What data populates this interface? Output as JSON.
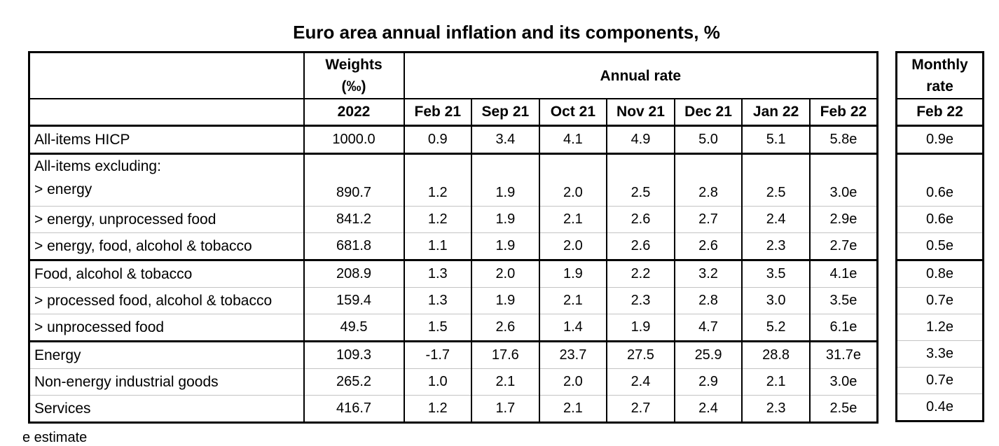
{
  "title": "Euro area annual inflation and its components, %",
  "footnote": "e estimate",
  "colors": {
    "border_strong": "#000000",
    "row_divider": "#c3c3c3",
    "background": "#ffffff"
  },
  "table": {
    "weights_header_line1": "Weights",
    "weights_header_line2": "(‰)",
    "weights_year": "2022",
    "annual_rate_header": "Annual rate",
    "months": [
      "Feb 21",
      "Sep 21",
      "Oct 21",
      "Nov 21",
      "Dec 21",
      "Jan 22",
      "Feb 22"
    ],
    "monthly_header_line1": "Monthly",
    "monthly_header_line2": "rate",
    "monthly_month": "Feb 22",
    "rows": [
      {
        "label": "All-items HICP",
        "bold_label": true,
        "weight": "1000.0",
        "values": [
          "0.9",
          "3.4",
          "4.1",
          "4.9",
          "5.0",
          "5.1",
          "5.8e"
        ],
        "monthly": "0.9e",
        "section_end_main": true,
        "section_end_monthly": true
      },
      {
        "label_lines": [
          "All-items excluding:",
          "> energy"
        ],
        "tall": true,
        "weight": "890.7",
        "values": [
          "1.2",
          "1.9",
          "2.0",
          "2.5",
          "2.8",
          "2.5",
          "3.0e"
        ],
        "monthly": "0.6e"
      },
      {
        "label": "> energy, unprocessed food",
        "weight": "841.2",
        "values": [
          "1.2",
          "1.9",
          "2.1",
          "2.6",
          "2.7",
          "2.4",
          "2.9e"
        ],
        "monthly": "0.6e"
      },
      {
        "label": "> energy, food, alcohol & tobacco",
        "weight": "681.8",
        "values": [
          "1.1",
          "1.9",
          "2.0",
          "2.6",
          "2.6",
          "2.3",
          "2.7e"
        ],
        "monthly": "0.5e",
        "section_end_main": true,
        "section_end_monthly": true
      },
      {
        "label": "Food, alcohol & tobacco",
        "weight": "208.9",
        "values": [
          "1.3",
          "2.0",
          "1.9",
          "2.2",
          "3.2",
          "3.5",
          "4.1e"
        ],
        "monthly": "0.8e"
      },
      {
        "label": "> processed food, alcohol & tobacco",
        "weight": "159.4",
        "values": [
          "1.3",
          "1.9",
          "2.1",
          "2.3",
          "2.8",
          "3.0",
          "3.5e"
        ],
        "monthly": "0.7e"
      },
      {
        "label": "> unprocessed food",
        "weight": "49.5",
        "values": [
          "1.5",
          "2.6",
          "1.4",
          "1.9",
          "4.7",
          "5.2",
          "6.1e"
        ],
        "monthly": "1.2e",
        "section_end_main": true,
        "section_end_monthly": false
      },
      {
        "label": "Energy",
        "weight": "109.3",
        "values": [
          "-1.7",
          "17.6",
          "23.7",
          "27.5",
          "25.9",
          "28.8",
          "31.7e"
        ],
        "monthly": "3.3e"
      },
      {
        "label": "Non-energy industrial goods",
        "weight": "265.2",
        "values": [
          "1.0",
          "2.1",
          "2.0",
          "2.4",
          "2.9",
          "2.1",
          "3.0e"
        ],
        "monthly": "0.7e"
      },
      {
        "label": "Services",
        "weight": "416.7",
        "values": [
          "1.2",
          "1.7",
          "2.1",
          "2.7",
          "2.4",
          "2.3",
          "2.5e"
        ],
        "monthly": "0.4e"
      }
    ]
  }
}
